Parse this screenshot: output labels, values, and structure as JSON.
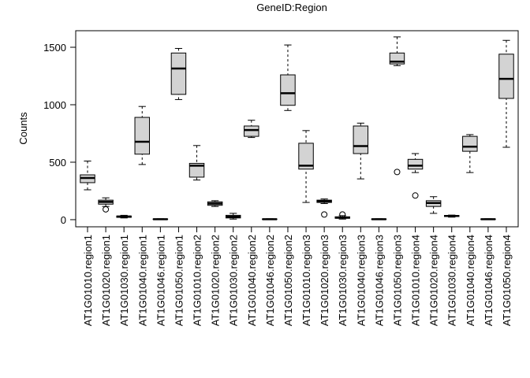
{
  "chart_data": {
    "type": "box",
    "title": "GeneID:Region",
    "y_label": "Counts",
    "categories": [
      "AT1G01010.region1",
      "AT1G01020.region1",
      "AT1G01030.region1",
      "AT1G01040.region1",
      "AT1G01046.region1",
      "AT1G01050.region1",
      "AT1G01010.region2",
      "AT1G01020.region2",
      "AT1G01030.region2",
      "AT1G01040.region2",
      "AT1G01046.region2",
      "AT1G01050.region2",
      "AT1G01010.region3",
      "AT1G01020.region3",
      "AT1G01030.region3",
      "AT1G01040.region3",
      "AT1G01046.region3",
      "AT1G01050.region3",
      "AT1G01010.region4",
      "AT1G01020.region4",
      "AT1G01030.region4",
      "AT1G01040.region4",
      "AT1G01046.region4",
      "AT1G01050.region4"
    ],
    "boxes": [
      {
        "low": 260,
        "q1": 322,
        "median": 363,
        "q3": 390,
        "high": 510,
        "outliers": []
      },
      {
        "low": 115,
        "q1": 135,
        "median": 155,
        "q3": 170,
        "high": 190,
        "outliers": [
          90
        ]
      },
      {
        "low": 15,
        "q1": 20,
        "median": 27,
        "q3": 32,
        "high": 38,
        "outliers": []
      },
      {
        "low": 480,
        "q1": 570,
        "median": 678,
        "q3": 890,
        "high": 985,
        "outliers": []
      },
      {
        "low": 0,
        "q1": 2,
        "median": 4,
        "q3": 6,
        "high": 8,
        "outliers": []
      },
      {
        "low": 1045,
        "q1": 1090,
        "median": 1315,
        "q3": 1450,
        "high": 1490,
        "outliers": []
      },
      {
        "low": 345,
        "q1": 370,
        "median": 470,
        "q3": 490,
        "high": 645,
        "outliers": []
      },
      {
        "low": 115,
        "q1": 125,
        "median": 140,
        "q3": 155,
        "high": 165,
        "outliers": []
      },
      {
        "low": 5,
        "q1": 15,
        "median": 25,
        "q3": 38,
        "high": 55,
        "outliers": []
      },
      {
        "low": 715,
        "q1": 725,
        "median": 780,
        "q3": 815,
        "high": 865,
        "outliers": []
      },
      {
        "low": 0,
        "q1": 2,
        "median": 4,
        "q3": 6,
        "high": 8,
        "outliers": []
      },
      {
        "low": 950,
        "q1": 995,
        "median": 1100,
        "q3": 1260,
        "high": 1520,
        "outliers": []
      },
      {
        "low": 150,
        "q1": 440,
        "median": 470,
        "q3": 665,
        "high": 775,
        "outliers": []
      },
      {
        "low": 140,
        "q1": 150,
        "median": 160,
        "q3": 170,
        "high": 180,
        "outliers": [
          45
        ]
      },
      {
        "low": 5,
        "q1": 12,
        "median": 18,
        "q3": 25,
        "high": 35,
        "outliers": [
          45
        ]
      },
      {
        "low": 355,
        "q1": 575,
        "median": 640,
        "q3": 815,
        "high": 840,
        "outliers": []
      },
      {
        "low": 0,
        "q1": 2,
        "median": 4,
        "q3": 6,
        "high": 8,
        "outliers": []
      },
      {
        "low": 1340,
        "q1": 1355,
        "median": 1375,
        "q3": 1450,
        "high": 1590,
        "outliers": [
          415
        ]
      },
      {
        "low": 410,
        "q1": 440,
        "median": 470,
        "q3": 525,
        "high": 575,
        "outliers": [
          210
        ]
      },
      {
        "low": 55,
        "q1": 115,
        "median": 145,
        "q3": 165,
        "high": 200,
        "outliers": []
      },
      {
        "low": 22,
        "q1": 27,
        "median": 32,
        "q3": 37,
        "high": 40,
        "outliers": []
      },
      {
        "low": 410,
        "q1": 595,
        "median": 635,
        "q3": 725,
        "high": 740,
        "outliers": []
      },
      {
        "low": 0,
        "q1": 2,
        "median": 4,
        "q3": 6,
        "high": 8,
        "outliers": []
      },
      {
        "low": 630,
        "q1": 1055,
        "median": 1225,
        "q3": 1440,
        "high": 1560,
        "outliers": []
      }
    ],
    "color": "#d3d3d3",
    "ylim": [
      -62,
      1644
    ],
    "yticks": [
      0,
      500,
      1000,
      1500
    ]
  }
}
